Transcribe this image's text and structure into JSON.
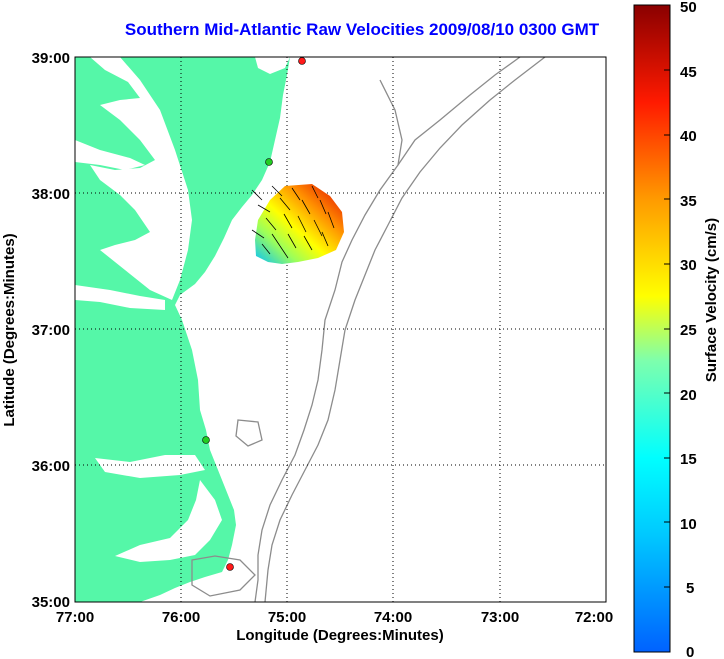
{
  "title": "Southern Mid-Atlantic Raw Velocities 2009/08/10 0300 GMT",
  "map": {
    "xlabel": "Longitude (Degrees:Minutes)",
    "ylabel": "Latitude (Degrees:Minutes)",
    "x_ticks": [
      "77:00",
      "76:00",
      "75:00",
      "74:00",
      "73:00",
      "72:00"
    ],
    "y_ticks": [
      "39:00",
      "38:00",
      "37:00",
      "36:00",
      "35:00"
    ],
    "lon_range": [
      -77,
      -72
    ],
    "lat_range": [
      35,
      39
    ],
    "land_color": "#55f7a8",
    "contour_color": "#8c8c8c",
    "grid": "dotted"
  },
  "stations": [
    {
      "color": "#ff1a1a",
      "lon": -75.15,
      "lat": 39.03
    },
    {
      "color": "#22cc22",
      "lon": -75.15,
      "lat": 38.22
    },
    {
      "color": "#22cc22",
      "lon": -75.55,
      "lat": 36.18
    },
    {
      "color": "#ff1a1a",
      "lon": -75.48,
      "lat": 35.25
    }
  ],
  "colorbar": {
    "label": "Surface Velocity (cm/s)",
    "ticks": [
      "50",
      "45",
      "40",
      "35",
      "30",
      "25",
      "20",
      "15",
      "10",
      "5",
      "0"
    ],
    "range": [
      0,
      50
    ],
    "colormap": "jet"
  }
}
